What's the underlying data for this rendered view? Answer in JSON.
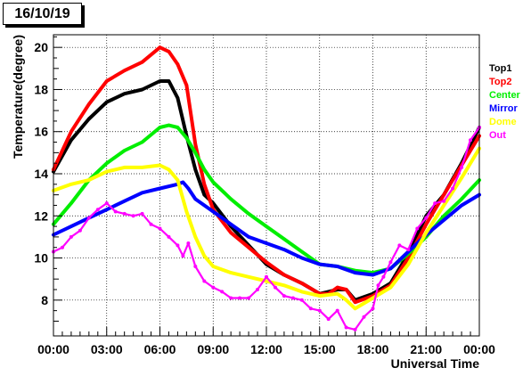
{
  "date_label": "16/10/19",
  "chart_data": {
    "type": "line",
    "title": "",
    "xlabel": "Universal Time",
    "ylabel": "Temperature(degree)",
    "x_unit": "hours (UT)",
    "xlim": [
      0,
      24
    ],
    "ylim": [
      6.3,
      20.6
    ],
    "x_ticks": [
      {
        "value": 0,
        "label": "00:00"
      },
      {
        "value": 3,
        "label": "03:00"
      },
      {
        "value": 6,
        "label": "06:00"
      },
      {
        "value": 9,
        "label": "09:00"
      },
      {
        "value": 12,
        "label": "12:00"
      },
      {
        "value": 15,
        "label": "15:00"
      },
      {
        "value": 18,
        "label": "18:00"
      },
      {
        "value": 21,
        "label": "21:00"
      },
      {
        "value": 24,
        "label": "00:00"
      }
    ],
    "y_ticks": [
      {
        "value": 8,
        "label": "8"
      },
      {
        "value": 10,
        "label": "10"
      },
      {
        "value": 12,
        "label": "12"
      },
      {
        "value": 14,
        "label": "14"
      },
      {
        "value": 16,
        "label": "16"
      },
      {
        "value": 18,
        "label": "18"
      },
      {
        "value": 20,
        "label": "20"
      }
    ],
    "grid": true,
    "legend_position": "right",
    "series": [
      {
        "name": "Top1",
        "color": "#000000",
        "x": [
          0,
          1,
          2,
          3,
          4,
          5,
          6,
          6.5,
          7,
          7.5,
          8,
          8.5,
          9,
          10,
          11,
          12,
          13,
          14,
          15,
          15.5,
          16,
          16.5,
          17,
          18,
          19,
          20,
          21,
          22,
          23,
          24
        ],
        "y": [
          14.1,
          15.6,
          16.6,
          17.4,
          17.8,
          18.0,
          18.4,
          18.4,
          17.6,
          15.8,
          14.2,
          13.0,
          12.6,
          11.5,
          10.6,
          9.7,
          9.2,
          8.8,
          8.3,
          8.4,
          8.5,
          8.5,
          8.0,
          8.3,
          8.8,
          10.2,
          12.0,
          13.0,
          14.5,
          16.2
        ]
      },
      {
        "name": "Top2",
        "color": "#ff0000",
        "x": [
          0,
          1,
          2,
          3,
          4,
          5,
          6,
          6.5,
          7,
          7.5,
          8,
          8.5,
          9,
          10,
          11,
          12,
          13,
          14,
          15,
          15.5,
          16,
          16.5,
          17,
          18,
          19,
          20,
          21,
          22,
          23,
          24
        ],
        "y": [
          14.2,
          16.0,
          17.3,
          18.4,
          18.9,
          19.3,
          20.0,
          19.8,
          19.2,
          18.2,
          15.4,
          13.5,
          12.3,
          11.2,
          10.5,
          9.8,
          9.2,
          8.8,
          8.3,
          8.3,
          8.6,
          8.5,
          7.9,
          8.2,
          8.7,
          10.0,
          11.6,
          13.0,
          14.4,
          15.8
        ]
      },
      {
        "name": "Center",
        "color": "#00ee00",
        "x": [
          0,
          1,
          2,
          3,
          4,
          5,
          6,
          6.5,
          7,
          7.5,
          8,
          8.5,
          9,
          10,
          11,
          12,
          13,
          14,
          15,
          16,
          17,
          18,
          19,
          20,
          21,
          22,
          23,
          24
        ],
        "y": [
          11.6,
          12.6,
          13.7,
          14.5,
          15.1,
          15.5,
          16.2,
          16.3,
          16.2,
          15.7,
          15.0,
          14.2,
          13.6,
          12.8,
          12.1,
          11.5,
          10.9,
          10.3,
          9.7,
          9.6,
          9.4,
          9.3,
          9.5,
          10.2,
          11.0,
          12.0,
          12.8,
          13.7
        ]
      },
      {
        "name": "Mirror",
        "color": "#0000ff",
        "x": [
          0,
          1,
          2,
          3,
          4,
          5,
          6,
          7,
          7.3,
          7.6,
          8,
          9,
          10,
          11,
          12,
          13,
          14,
          15,
          16,
          17,
          18,
          19,
          20,
          21,
          22,
          23,
          24
        ],
        "y": [
          11.1,
          11.5,
          11.9,
          12.3,
          12.7,
          13.1,
          13.3,
          13.5,
          13.6,
          13.3,
          12.8,
          12.2,
          11.6,
          11.0,
          10.7,
          10.4,
          10.0,
          9.7,
          9.6,
          9.3,
          9.2,
          9.5,
          10.3,
          11.1,
          11.8,
          12.5,
          13.0
        ]
      },
      {
        "name": "Dome",
        "color": "#ffff00",
        "x": [
          0,
          1,
          2,
          3,
          4,
          5,
          6,
          6.5,
          7,
          7.5,
          8,
          8.5,
          9,
          10,
          11,
          12,
          13,
          14,
          15,
          16,
          16.5,
          17,
          18,
          19,
          20,
          21,
          22,
          23,
          24
        ],
        "y": [
          13.2,
          13.5,
          13.7,
          14.1,
          14.3,
          14.3,
          14.4,
          14.2,
          13.7,
          12.2,
          11.0,
          10.1,
          9.6,
          9.3,
          9.1,
          8.9,
          8.7,
          8.4,
          8.2,
          8.3,
          8.0,
          7.6,
          8.1,
          8.6,
          9.7,
          11.2,
          12.5,
          13.8,
          15.2
        ]
      },
      {
        "name": "Out",
        "color": "#ff00ff",
        "x": [
          0,
          0.5,
          1,
          1.5,
          2,
          2.5,
          3,
          3.5,
          4,
          4.5,
          5,
          5.5,
          6,
          6.5,
          7,
          7.3,
          7.6,
          8,
          8.5,
          9,
          9.5,
          10,
          10.5,
          11,
          11.5,
          12,
          12.5,
          13,
          13.5,
          14,
          14.5,
          15,
          15.5,
          16,
          16.5,
          17,
          17.5,
          18,
          18.3,
          18.6,
          19,
          19.5,
          20,
          20.5,
          21,
          21.5,
          22,
          22.5,
          23,
          23.5,
          24
        ],
        "y": [
          10.3,
          10.5,
          11.0,
          11.3,
          11.9,
          12.3,
          12.6,
          12.2,
          12.1,
          12.0,
          12.1,
          11.6,
          11.4,
          11.0,
          10.6,
          10.1,
          10.7,
          9.6,
          8.9,
          8.6,
          8.4,
          8.1,
          8.1,
          8.1,
          8.5,
          9.1,
          8.6,
          8.2,
          8.1,
          8.0,
          7.6,
          7.5,
          7.1,
          7.5,
          6.7,
          6.6,
          7.2,
          7.6,
          8.7,
          9.1,
          9.8,
          10.6,
          10.4,
          11.4,
          11.9,
          12.6,
          12.7,
          13.3,
          14.3,
          15.6,
          16.2
        ]
      }
    ]
  }
}
